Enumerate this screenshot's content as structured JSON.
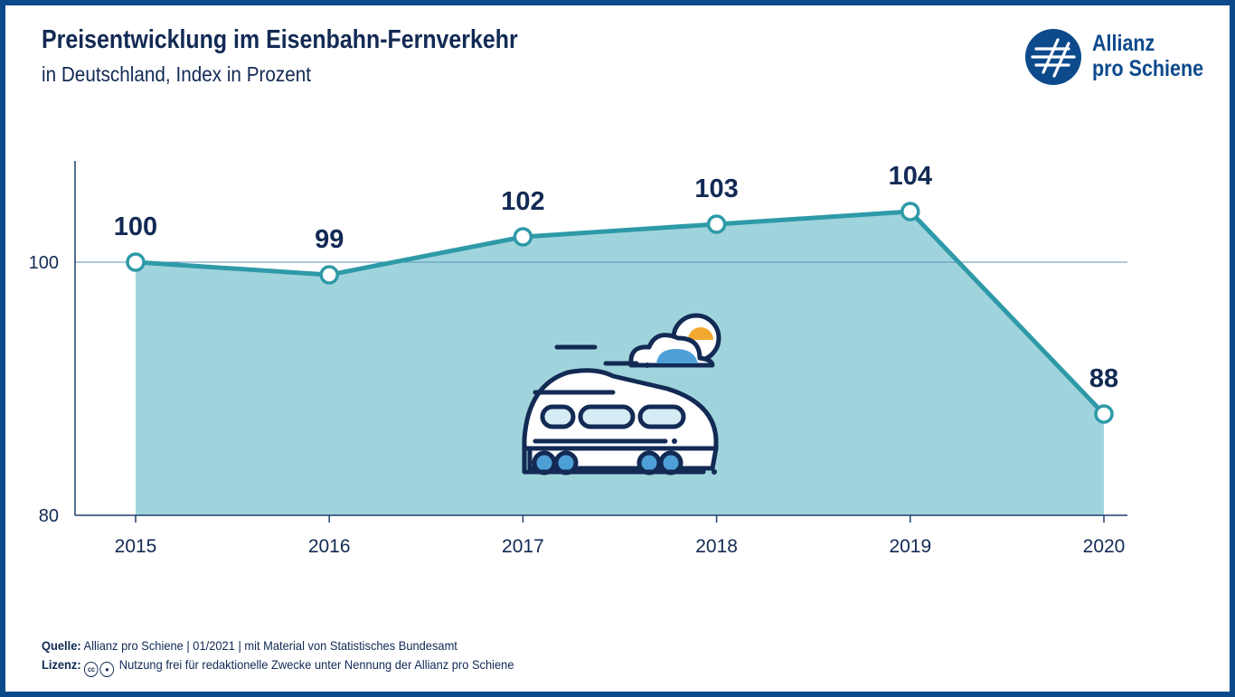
{
  "header": {
    "title": "Preisentwicklung im Eisenbahn-Fernverkehr",
    "subtitle": "in Deutschland, Index in Prozent"
  },
  "logo": {
    "line1": "Allianz",
    "line2": "pro Schiene"
  },
  "chart_data": {
    "type": "area",
    "categories": [
      "2015",
      "2016",
      "2017",
      "2018",
      "2019",
      "2020"
    ],
    "values": [
      100,
      99,
      102,
      103,
      104,
      88
    ],
    "data_labels": [
      "100",
      "99",
      "102",
      "103",
      "104",
      "88"
    ],
    "y_ticks": [
      "80",
      "100"
    ],
    "ylim": [
      80,
      108
    ],
    "reference_line": 100,
    "colors": {
      "line": "#2e9aa8",
      "fill": "#a0d4dc",
      "text": "#122a54",
      "axis": "#1f3f6e"
    }
  },
  "footer": {
    "source_label": "Quelle:",
    "source_text": "Allianz pro Schiene | 01/2021 | mit Material von Statistisches Bundesamt",
    "license_label": "Lizenz:",
    "license_icons": [
      "cc-icon",
      "attribution-icon"
    ],
    "license_text": "Nutzung frei für redaktionelle Zwecke unter Nennung der Allianz pro Schiene"
  }
}
